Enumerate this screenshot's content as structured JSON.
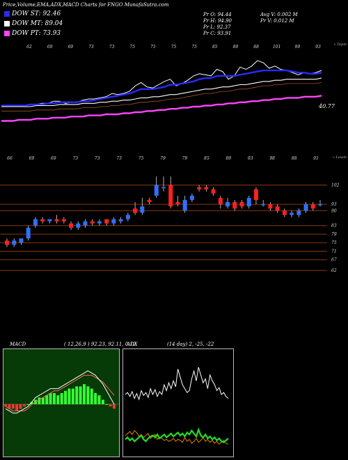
{
  "header": {
    "title": "Price,Volume,EMA,ADX,MACD Charts for FNGO MunafaSutra.com",
    "legend": [
      {
        "label": "DOW ST: 92.46",
        "color": "#2a2aff"
      },
      {
        "label": "DOW MT: 89.04",
        "color": "#ffffff"
      },
      {
        "label": "DOW PT: 73.93",
        "color": "#ff44ff"
      }
    ],
    "ohlc": {
      "open": "Pr   O: 94.44",
      "high": "Pr   H: 94.90",
      "low": "Pr   L: 92.37",
      "close": "Pr   C: 93.91",
      "avg_volume": "Avg V: 0.002  M",
      "volume": "Pr   V: 0.012  M"
    }
  },
  "colors": {
    "ema_short": "#2a2aff",
    "ema_mid": "#ffffff",
    "ema_long": "#ff44ff",
    "up": "#2f6fff",
    "down": "#ff2020",
    "grid": "#8b3a0a",
    "adx": "#ffffff",
    "di_plus": "#22dd22",
    "di_minus": "#ff8c00"
  },
  "chart_data": [
    {
      "type": "line",
      "panel": "ema",
      "right_label": "« Topm",
      "last_value_label": "40.77",
      "top_tick_labels": [
        "62",
        "69",
        "69",
        "73",
        "73",
        "75",
        "75",
        "75",
        "75",
        "85",
        "89",
        "88",
        "101",
        "99",
        "93"
      ],
      "series": [
        {
          "key": "price",
          "values": [
            34,
            33,
            33,
            34,
            34,
            35,
            35,
            36,
            36,
            38,
            38,
            36,
            37,
            37,
            39,
            40,
            40,
            41,
            42,
            45,
            44,
            45,
            47,
            52,
            55,
            51,
            50,
            53,
            56,
            58,
            52,
            54,
            57,
            61,
            63,
            62,
            61,
            67,
            65,
            58,
            61,
            69,
            67,
            70,
            75,
            73,
            68,
            70,
            67,
            66,
            64,
            62,
            64,
            63,
            64,
            66
          ]
        },
        {
          "key": "ema_short",
          "values": [
            34,
            34,
            34,
            34,
            34,
            35,
            35,
            35,
            36,
            36,
            37,
            37,
            37,
            37,
            38,
            38,
            39,
            40,
            41,
            42,
            43,
            44,
            45,
            47,
            49,
            49,
            49,
            50,
            51,
            53,
            53,
            54,
            55,
            56,
            58,
            59,
            59,
            61,
            61,
            61,
            61,
            62,
            63,
            64,
            65,
            66,
            66,
            66,
            66,
            66,
            65,
            64,
            64,
            63,
            63,
            64
          ]
        },
        {
          "key": "ema_mid",
          "values": [
            33,
            33,
            33,
            33,
            33,
            33,
            34,
            34,
            34,
            34,
            35,
            35,
            35,
            35,
            36,
            36,
            36,
            37,
            37,
            38,
            38,
            39,
            39,
            40,
            41,
            41,
            42,
            42,
            43,
            44,
            44,
            45,
            46,
            47,
            48,
            49,
            49,
            50,
            51,
            51,
            52,
            53,
            53,
            54,
            55,
            56,
            56,
            57,
            57,
            58,
            58,
            58,
            58,
            58,
            58,
            59
          ]
        },
        {
          "key": "ema_long",
          "values": [
            20,
            20,
            20,
            21,
            21,
            21,
            22,
            22,
            22,
            23,
            23,
            23,
            24,
            24,
            24,
            25,
            25,
            25,
            26,
            26,
            26,
            27,
            27,
            28,
            28,
            29,
            29,
            30,
            30,
            31,
            31,
            32,
            32,
            33,
            33,
            34,
            34,
            35,
            35,
            36,
            36,
            37,
            37,
            38,
            38,
            39,
            39,
            40,
            40,
            41,
            41,
            41,
            42,
            42,
            42,
            43
          ]
        }
      ]
    },
    {
      "type": "candlestick",
      "panel": "price",
      "right_label": "« Lowm",
      "top_tick_labels": [
        "66",
        "69",
        "69",
        "73",
        "73",
        "73",
        "75",
        "79",
        "79",
        "85",
        "89",
        "93",
        "98",
        "88",
        "91"
      ],
      "y_tick_labels": [
        "102",
        "93",
        "90",
        "83",
        "79",
        "75",
        "71",
        "67",
        "62"
      ],
      "candles": [
        {
          "o": 76,
          "c": 74,
          "h": 77,
          "l": 73
        },
        {
          "o": 74,
          "c": 76,
          "h": 77,
          "l": 73
        },
        {
          "o": 75,
          "c": 77,
          "h": 77,
          "l": 74
        },
        {
          "o": 77,
          "c": 82,
          "h": 83,
          "l": 76
        },
        {
          "o": 83,
          "c": 86,
          "h": 87,
          "l": 82
        },
        {
          "o": 86,
          "c": 85,
          "h": 87,
          "l": 84
        },
        {
          "o": 85,
          "c": 86,
          "h": 86,
          "l": 84
        },
        {
          "o": 86,
          "c": 85,
          "h": 88,
          "l": 84
        },
        {
          "o": 86,
          "c": 85,
          "h": 87,
          "l": 84
        },
        {
          "o": 84,
          "c": 82,
          "h": 85,
          "l": 81
        },
        {
          "o": 82,
          "c": 84,
          "h": 85,
          "l": 81
        },
        {
          "o": 83,
          "c": 85,
          "h": 86,
          "l": 82
        },
        {
          "o": 85,
          "c": 84,
          "h": 86,
          "l": 83
        },
        {
          "o": 84,
          "c": 85,
          "h": 86,
          "l": 83
        },
        {
          "o": 86,
          "c": 84,
          "h": 86,
          "l": 83
        },
        {
          "o": 84,
          "c": 86,
          "h": 87,
          "l": 83
        },
        {
          "o": 85,
          "c": 86,
          "h": 87,
          "l": 84
        },
        {
          "o": 86,
          "c": 88,
          "h": 89,
          "l": 85
        },
        {
          "o": 91,
          "c": 89,
          "h": 94,
          "l": 88
        },
        {
          "o": 89,
          "c": 92,
          "h": 96,
          "l": 88
        },
        {
          "o": 95,
          "c": 94,
          "h": 96,
          "l": 93
        },
        {
          "o": 97,
          "c": 102,
          "h": 106,
          "l": 96
        },
        {
          "o": 101,
          "c": 101,
          "h": 106,
          "l": 99
        },
        {
          "o": 102,
          "c": 92,
          "h": 106,
          "l": 91
        },
        {
          "o": 94,
          "c": 93,
          "h": 97,
          "l": 92
        },
        {
          "o": 90,
          "c": 95,
          "h": 97,
          "l": 89
        },
        {
          "o": 95,
          "c": 97,
          "h": 98,
          "l": 94
        },
        {
          "o": 101,
          "c": 100,
          "h": 102,
          "l": 99
        },
        {
          "o": 101,
          "c": 100,
          "h": 102,
          "l": 99
        },
        {
          "o": 100,
          "c": 98,
          "h": 101,
          "l": 97
        },
        {
          "o": 96,
          "c": 93,
          "h": 97,
          "l": 91
        },
        {
          "o": 92,
          "c": 94,
          "h": 96,
          "l": 91
        },
        {
          "o": 94,
          "c": 91,
          "h": 95,
          "l": 90
        },
        {
          "o": 94,
          "c": 92,
          "h": 95,
          "l": 91
        },
        {
          "o": 92,
          "c": 96,
          "h": 97,
          "l": 91
        },
        {
          "o": 100,
          "c": 95,
          "h": 101,
          "l": 93
        },
        {
          "o": 93,
          "c": 93,
          "h": 95,
          "l": 92
        },
        {
          "o": 93,
          "c": 91,
          "h": 94,
          "l": 90
        },
        {
          "o": 92,
          "c": 90,
          "h": 93,
          "l": 89
        },
        {
          "o": 90,
          "c": 88,
          "h": 91,
          "l": 87
        },
        {
          "o": 88,
          "c": 89,
          "h": 90,
          "l": 87
        },
        {
          "o": 88,
          "c": 90,
          "h": 91,
          "l": 87
        },
        {
          "o": 90,
          "c": 93,
          "h": 94,
          "l": 89
        },
        {
          "o": 93,
          "c": 91,
          "h": 94,
          "l": 90
        },
        {
          "o": 93,
          "c": 93,
          "h": 95,
          "l": 92
        }
      ]
    },
    {
      "type": "bar+line",
      "panel": "macd",
      "label": "MACD",
      "params": "( 12,26,9 ) 92.23, 92.11, 0.12",
      "histogram": [
        -1,
        -2,
        -2,
        -3,
        -2,
        -1,
        0,
        1,
        2,
        3,
        3,
        4,
        5,
        5,
        4,
        5,
        6,
        7,
        7,
        8,
        8,
        9,
        8,
        7,
        5,
        4,
        2,
        0,
        -1,
        -2
      ],
      "macd": [
        -2,
        -3,
        -4,
        -4,
        -3,
        -2,
        -1,
        1,
        3,
        4,
        5,
        6,
        7,
        7,
        7,
        8,
        9,
        10,
        11,
        12,
        13,
        14,
        15,
        14,
        13,
        11,
        9,
        6,
        3,
        0
      ],
      "signal": [
        -1,
        -2,
        -3,
        -3,
        -3,
        -3,
        -2,
        0,
        1,
        2,
        3,
        4,
        5,
        6,
        6,
        7,
        8,
        9,
        10,
        11,
        12,
        13,
        13,
        13,
        12,
        11,
        10,
        8,
        6,
        4
      ]
    },
    {
      "type": "line",
      "panel": "adx",
      "label": "ADX",
      "params": "(14 day) 2, -25, -22",
      "adx": [
        60,
        62,
        58,
        63,
        56,
        61,
        55,
        64,
        59,
        62,
        57,
        66,
        60,
        65,
        58,
        63,
        60,
        70,
        64,
        72,
        66,
        74,
        68,
        86,
        78,
        70,
        66,
        62,
        64,
        76,
        84,
        74,
        88,
        80,
        72,
        76,
        66,
        80,
        74,
        70,
        64,
        67,
        60,
        62,
        58,
        56
      ],
      "di_plus": [
        14,
        16,
        13,
        15,
        12,
        14,
        16,
        18,
        14,
        12,
        15,
        17,
        18,
        16,
        19,
        15,
        17,
        19,
        16,
        18,
        20,
        17,
        19,
        21,
        18,
        20,
        17,
        21,
        19,
        23,
        20,
        17,
        24,
        18,
        16,
        19,
        15,
        17,
        14,
        16,
        13,
        15,
        12,
        11,
        13,
        15
      ],
      "di_minus": [
        18,
        20,
        22,
        19,
        23,
        21,
        17,
        19,
        16,
        18,
        20,
        15,
        17,
        19,
        14,
        16,
        15,
        13,
        14,
        12,
        13,
        15,
        12,
        14,
        13,
        11,
        16,
        12,
        14,
        10,
        12,
        15,
        11,
        13,
        16,
        12,
        14,
        11,
        13,
        10,
        12,
        9,
        11,
        13,
        10,
        9
      ]
    }
  ]
}
